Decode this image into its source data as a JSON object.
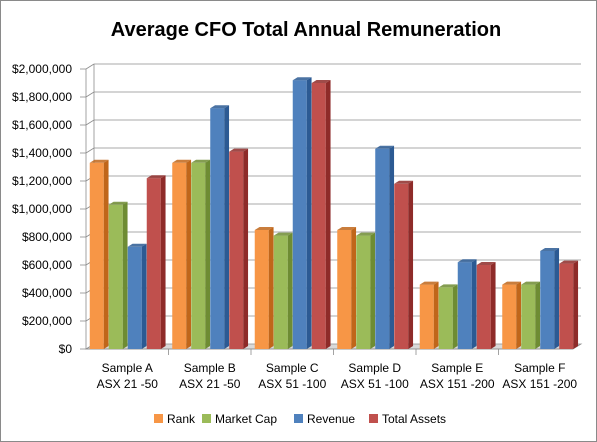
{
  "chart_data": {
    "type": "bar",
    "title": "Average CFO Total Annual Remuneration",
    "xlabel": "",
    "ylabel": "",
    "ylim": [
      0,
      2000000
    ],
    "y_ticks": [
      "$0",
      "$200,000",
      "$400,000",
      "$600,000",
      "$800,000",
      "$1,000,000",
      "$1,200,000",
      "$1,400,000",
      "$1,600,000",
      "$1,800,000",
      "$2,000,000"
    ],
    "categories": [
      [
        "Sample A",
        "ASX 21 -50"
      ],
      [
        "Sample B",
        "ASX 21 -50"
      ],
      [
        "Sample C",
        "ASX 51 -100"
      ],
      [
        "Sample D",
        "ASX 51 -100"
      ],
      [
        "Sample E",
        "ASX 151 -200"
      ],
      [
        "Sample F",
        "ASX 151 -200"
      ]
    ],
    "series": [
      {
        "name": "Rank",
        "color": "#F79646",
        "side": "#C0661A",
        "values": [
          1330000,
          1330000,
          850000,
          850000,
          460000,
          460000
        ]
      },
      {
        "name": "Market Cap",
        "color": "#9BBB59",
        "side": "#6E8C33",
        "values": [
          1030000,
          1330000,
          810000,
          810000,
          440000,
          460000
        ]
      },
      {
        "name": "Revenue",
        "color": "#4F81BD",
        "side": "#2C5A93",
        "values": [
          730000,
          1720000,
          1920000,
          1430000,
          620000,
          700000
        ]
      },
      {
        "name": "Total Assets",
        "color": "#C0504D",
        "side": "#8E2B29",
        "values": [
          1220000,
          1410000,
          1900000,
          1180000,
          600000,
          610000
        ]
      }
    ],
    "grid": true,
    "legend": "bottom"
  }
}
